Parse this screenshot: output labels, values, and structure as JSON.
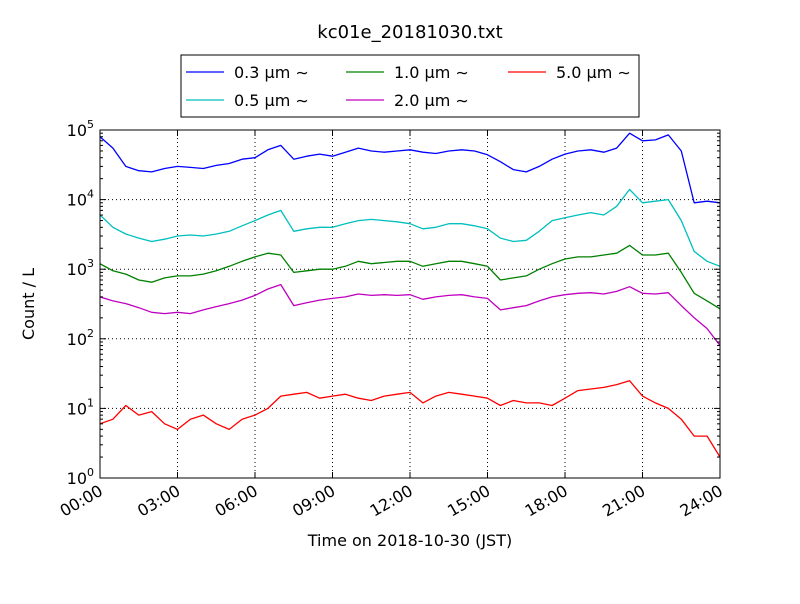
{
  "chart_data": {
    "type": "line",
    "title": "kc01e_20181030.txt",
    "xlabel": "Time on 2018-10-30 (JST)",
    "ylabel": "Count / L",
    "yscale": "log",
    "ylim": [
      1,
      100000
    ],
    "xlim": [
      0,
      24
    ],
    "x_ticks": [
      0,
      3,
      6,
      9,
      12,
      15,
      18,
      21,
      24
    ],
    "x_tick_labels": [
      "00:00",
      "03:00",
      "06:00",
      "09:00",
      "12:00",
      "15:00",
      "18:00",
      "21:00",
      "24:00"
    ],
    "y_ticks": [
      1,
      10,
      100,
      1000,
      10000,
      100000
    ],
    "y_tick_labels": [
      {
        "base": "10",
        "exp": "0"
      },
      {
        "base": "10",
        "exp": "1"
      },
      {
        "base": "10",
        "exp": "2"
      },
      {
        "base": "10",
        "exp": "3"
      },
      {
        "base": "10",
        "exp": "4"
      },
      {
        "base": "10",
        "exp": "5"
      }
    ],
    "grid": true,
    "legend_position": "top-center",
    "legend_layout": {
      "columns": 3
    },
    "series": [
      {
        "name": "0.3 μm ∼",
        "color": "#0000ff",
        "x": [
          0,
          0.5,
          1,
          1.5,
          2,
          2.5,
          3,
          3.5,
          4,
          4.5,
          5,
          5.5,
          6,
          6.5,
          7,
          7.5,
          8,
          8.5,
          9,
          9.5,
          10,
          10.5,
          11,
          11.5,
          12,
          12.5,
          13,
          13.5,
          14,
          14.5,
          15,
          15.5,
          16,
          16.5,
          17,
          17.5,
          18,
          18.5,
          19,
          19.5,
          20,
          20.5,
          21,
          21.5,
          22,
          22.5,
          23,
          23.5,
          24
        ],
        "y": [
          80000,
          55000,
          30000,
          26000,
          25000,
          28000,
          30000,
          29000,
          28000,
          31000,
          33000,
          38000,
          40000,
          52000,
          60000,
          38000,
          42000,
          45000,
          42000,
          48000,
          55000,
          50000,
          48000,
          50000,
          52000,
          48000,
          46000,
          50000,
          52000,
          50000,
          44000,
          35000,
          27000,
          25000,
          30000,
          38000,
          45000,
          50000,
          52000,
          48000,
          55000,
          90000,
          70000,
          72000,
          85000,
          50000,
          9000,
          9500,
          9000
        ]
      },
      {
        "name": "0.5 μm ∼",
        "color": "#00bfbf",
        "x": [
          0,
          0.5,
          1,
          1.5,
          2,
          2.5,
          3,
          3.5,
          4,
          4.5,
          5,
          5.5,
          6,
          6.5,
          7,
          7.5,
          8,
          8.5,
          9,
          9.5,
          10,
          10.5,
          11,
          11.5,
          12,
          12.5,
          13,
          13.5,
          14,
          14.5,
          15,
          15.5,
          16,
          16.5,
          17,
          17.5,
          18,
          18.5,
          19,
          19.5,
          20,
          20.5,
          21,
          21.5,
          22,
          22.5,
          23,
          23.5,
          24
        ],
        "y": [
          6000,
          4000,
          3200,
          2800,
          2500,
          2700,
          3000,
          3100,
          3000,
          3200,
          3500,
          4200,
          5000,
          6000,
          7000,
          3500,
          3800,
          4000,
          4000,
          4500,
          5000,
          5200,
          5000,
          4800,
          4500,
          3800,
          4000,
          4500,
          4500,
          4200,
          3800,
          2800,
          2500,
          2600,
          3500,
          5000,
          5500,
          6000,
          6500,
          6000,
          8000,
          14000,
          9000,
          9500,
          10000,
          5000,
          1800,
          1300,
          1100
        ]
      },
      {
        "name": "1.0 μm ∼",
        "color": "#008000",
        "x": [
          0,
          0.5,
          1,
          1.5,
          2,
          2.5,
          3,
          3.5,
          4,
          4.5,
          5,
          5.5,
          6,
          6.5,
          7,
          7.5,
          8,
          8.5,
          9,
          9.5,
          10,
          10.5,
          11,
          11.5,
          12,
          12.5,
          13,
          13.5,
          14,
          14.5,
          15,
          15.5,
          16,
          16.5,
          17,
          17.5,
          18,
          18.5,
          19,
          19.5,
          20,
          20.5,
          21,
          21.5,
          22,
          22.5,
          23,
          23.5,
          24
        ],
        "y": [
          1200,
          950,
          850,
          700,
          650,
          750,
          800,
          800,
          850,
          950,
          1100,
          1300,
          1500,
          1700,
          1600,
          900,
          950,
          1000,
          1000,
          1100,
          1300,
          1200,
          1250,
          1300,
          1300,
          1100,
          1200,
          1300,
          1300,
          1200,
          1100,
          700,
          750,
          800,
          1000,
          1200,
          1400,
          1500,
          1500,
          1600,
          1700,
          2200,
          1600,
          1600,
          1700,
          900,
          450,
          350,
          270
        ]
      },
      {
        "name": "2.0 μm ∼",
        "color": "#bf00bf",
        "x": [
          0,
          0.5,
          1,
          1.5,
          2,
          2.5,
          3,
          3.5,
          4,
          4.5,
          5,
          5.5,
          6,
          6.5,
          7,
          7.5,
          8,
          8.5,
          9,
          9.5,
          10,
          10.5,
          11,
          11.5,
          12,
          12.5,
          13,
          13.5,
          14,
          14.5,
          15,
          15.5,
          16,
          16.5,
          17,
          17.5,
          18,
          18.5,
          19,
          19.5,
          20,
          20.5,
          21,
          21.5,
          22,
          22.5,
          23,
          23.5,
          24
        ],
        "y": [
          400,
          350,
          320,
          280,
          240,
          230,
          240,
          230,
          260,
          290,
          320,
          360,
          420,
          520,
          600,
          300,
          330,
          360,
          380,
          400,
          440,
          420,
          430,
          420,
          430,
          370,
          400,
          420,
          430,
          400,
          380,
          260,
          280,
          300,
          350,
          400,
          430,
          450,
          460,
          440,
          480,
          560,
          450,
          440,
          460,
          300,
          200,
          140,
          80
        ]
      },
      {
        "name": "5.0 μm ∼",
        "color": "#ff0000",
        "x": [
          0,
          0.5,
          1,
          1.5,
          2,
          2.5,
          3,
          3.5,
          4,
          4.5,
          5,
          5.5,
          6,
          6.5,
          7,
          7.5,
          8,
          8.5,
          9,
          9.5,
          10,
          10.5,
          11,
          11.5,
          12,
          12.5,
          13,
          13.5,
          14,
          14.5,
          15,
          15.5,
          16,
          16.5,
          17,
          17.5,
          18,
          18.5,
          19,
          19.5,
          20,
          20.5,
          21,
          21.5,
          22,
          22.5,
          23,
          23.5,
          24
        ],
        "y": [
          6,
          7,
          11,
          8,
          9,
          6,
          5,
          7,
          8,
          6,
          5,
          7,
          8,
          10,
          15,
          16,
          17,
          14,
          15,
          16,
          14,
          13,
          15,
          16,
          17,
          12,
          15,
          17,
          16,
          15,
          14,
          11,
          13,
          12,
          12,
          11,
          14,
          18,
          19,
          20,
          22,
          25,
          15,
          12,
          10,
          7,
          4,
          4,
          2
        ]
      }
    ]
  }
}
